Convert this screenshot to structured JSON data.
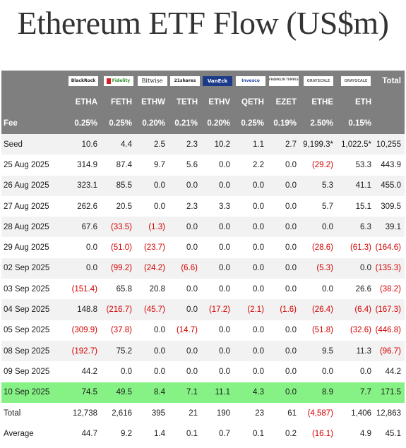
{
  "title": "Ethereum ETF Flow (US$m)",
  "colors": {
    "header_bg": "#7f7f7f",
    "highlight_row": "#86f286",
    "negative": "#d40000",
    "stripe": "#f2f2f2"
  },
  "logos": [
    {
      "text": "BlackRock",
      "icon": "blackrock-logo"
    },
    {
      "text": "Fidelity",
      "icon": "fidelity-logo"
    },
    {
      "text": "Bitwise",
      "icon": "bitwise-logo"
    },
    {
      "text": "21shares",
      "icon": "21shares-logo"
    },
    {
      "text": "VanEck",
      "icon": "vaneck-logo"
    },
    {
      "text": "Invesco",
      "icon": "invesco-logo"
    },
    {
      "text": "FRANKLIN TEMPLETON",
      "icon": "franklin-logo"
    },
    {
      "text": "GRAYSCALE",
      "icon": "grayscale-logo"
    },
    {
      "text": "GRAYSCALE",
      "icon": "grayscale-logo"
    }
  ],
  "total_header": "Total",
  "tickers": [
    "ETHA",
    "FETH",
    "ETHW",
    "TETH",
    "ETHV",
    "QETH",
    "EZET",
    "ETHE",
    "ETH"
  ],
  "fee": {
    "label": "Fee",
    "values": [
      "0.25%",
      "0.25%",
      "0.20%",
      "0.21%",
      "0.20%",
      "0.25%",
      "0.19%",
      "2.50%",
      "0.15%"
    ]
  },
  "rows": [
    {
      "label": "Seed",
      "values": [
        "10.6",
        "4.4",
        "2.5",
        "2.3",
        "10.2",
        "1.1",
        "2.7",
        "9,199.3*",
        "1,022.5*",
        "10,255"
      ]
    },
    {
      "label": "25 Aug 2025",
      "values": [
        "314.9",
        "87.4",
        "9.7",
        "5.6",
        "0.0",
        "2.2",
        "0.0",
        "(29.2)",
        "53.3",
        "443.9"
      ]
    },
    {
      "label": "26 Aug 2025",
      "values": [
        "323.1",
        "85.5",
        "0.0",
        "0.0",
        "0.0",
        "0.0",
        "0.0",
        "5.3",
        "41.1",
        "455.0"
      ]
    },
    {
      "label": "27 Aug 2025",
      "values": [
        "262.6",
        "20.5",
        "0.0",
        "2.3",
        "3.3",
        "0.0",
        "0.0",
        "5.7",
        "15.1",
        "309.5"
      ]
    },
    {
      "label": "28 Aug 2025",
      "values": [
        "67.6",
        "(33.5)",
        "(1.3)",
        "0.0",
        "0.0",
        "0.0",
        "0.0",
        "0.0",
        "6.3",
        "39.1"
      ]
    },
    {
      "label": "29 Aug 2025",
      "values": [
        "0.0",
        "(51.0)",
        "(23.7)",
        "0.0",
        "0.0",
        "0.0",
        "0.0",
        "(28.6)",
        "(61.3)",
        "(164.6)"
      ]
    },
    {
      "label": "02 Sep 2025",
      "values": [
        "0.0",
        "(99.2)",
        "(24.2)",
        "(6.6)",
        "0.0",
        "0.0",
        "0.0",
        "(5.3)",
        "0.0",
        "(135.3)"
      ]
    },
    {
      "label": "03 Sep 2025",
      "values": [
        "(151.4)",
        "65.8",
        "20.8",
        "0.0",
        "0.0",
        "0.0",
        "0.0",
        "0.0",
        "26.6",
        "(38.2)"
      ]
    },
    {
      "label": "04 Sep 2025",
      "values": [
        "148.8",
        "(216.7)",
        "(45.7)",
        "0.0",
        "(17.2)",
        "(2.1)",
        "(1.6)",
        "(26.4)",
        "(6.4)",
        "(167.3)"
      ]
    },
    {
      "label": "05 Sep 2025",
      "values": [
        "(309.9)",
        "(37.8)",
        "0.0",
        "(14.7)",
        "0.0",
        "0.0",
        "0.0",
        "(51.8)",
        "(32.6)",
        "(446.8)"
      ]
    },
    {
      "label": "08 Sep 2025",
      "values": [
        "(192.7)",
        "75.2",
        "0.0",
        "0.0",
        "0.0",
        "0.0",
        "0.0",
        "9.5",
        "11.3",
        "(96.7)"
      ]
    },
    {
      "label": "09 Sep 2025",
      "values": [
        "44.2",
        "0.0",
        "0.0",
        "0.0",
        "0.0",
        "0.0",
        "0.0",
        "0.0",
        "0.0",
        "44.2"
      ]
    },
    {
      "label": "10 Sep 2025",
      "values": [
        "74.5",
        "49.5",
        "8.4",
        "7.1",
        "11.1",
        "4.3",
        "0.0",
        "8.9",
        "7.7",
        "171.5"
      ],
      "highlight": true
    }
  ],
  "summary": [
    {
      "label": "Total",
      "values": [
        "12,738",
        "2,616",
        "395",
        "21",
        "190",
        "23",
        "61",
        "(4,587)",
        "1,406",
        "12,863"
      ]
    },
    {
      "label": "Average",
      "values": [
        "44.7",
        "9.2",
        "1.4",
        "0.1",
        "0.7",
        "0.1",
        "0.2",
        "(16.1)",
        "4.9",
        "45.1"
      ]
    }
  ]
}
